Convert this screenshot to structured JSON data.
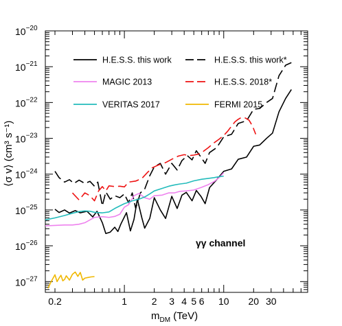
{
  "chart_data": {
    "type": "line",
    "xlabel_main": "m",
    "xlabel_sub": "DM",
    "xlabel_unit": " (TeV)",
    "ylabel": "⟨σ v⟩ (cm³ s⁻¹)",
    "x_scale": "log",
    "y_scale": "log",
    "xlim": [
      0.16,
      70
    ],
    "ylim": [
      5e-28,
      1e-20
    ],
    "x_tick_labels": [
      {
        "value": 0.2,
        "label": "0.2"
      },
      {
        "value": 1,
        "label": "1"
      },
      {
        "value": 2,
        "label": "2"
      },
      {
        "value": 3,
        "label": "3"
      },
      {
        "value": 4,
        "label": "4"
      },
      {
        "value": 5,
        "label": "5"
      },
      {
        "value": 6,
        "label": "6"
      },
      {
        "value": 10,
        "label": "10"
      },
      {
        "value": 20,
        "label": "20"
      },
      {
        "value": 30,
        "label": "30"
      }
    ],
    "y_tick_labels": [
      {
        "exp": -27,
        "base": "10",
        "sup": "−27"
      },
      {
        "exp": -26,
        "base": "10",
        "sup": "−26"
      },
      {
        "exp": -25,
        "base": "10",
        "sup": "−25"
      },
      {
        "exp": -24,
        "base": "10",
        "sup": "−24"
      },
      {
        "exp": -23,
        "base": "10",
        "sup": "−23"
      },
      {
        "exp": -22,
        "base": "10",
        "sup": "−22"
      },
      {
        "exp": -21,
        "base": "10",
        "sup": "−21"
      },
      {
        "exp": -20,
        "base": "10",
        "sup": "−20"
      }
    ],
    "annotation": "γγ channel",
    "legend_position": "top",
    "series": [
      {
        "name": "H.E.S.S. this work",
        "color": "#000000",
        "dash": "solid",
        "points": [
          [
            0.2,
            1.05e-25
          ],
          [
            0.22,
            8.5e-26
          ],
          [
            0.25,
            1e-25
          ],
          [
            0.28,
            8.2e-26
          ],
          [
            0.32,
            9.6e-26
          ],
          [
            0.36,
            8.3e-26
          ],
          [
            0.42,
            9.2e-26
          ],
          [
            0.48,
            6.4e-26
          ],
          [
            0.53,
            9.2e-26
          ],
          [
            0.6,
            4.4e-26
          ],
          [
            0.65,
            2.2e-26
          ],
          [
            0.72,
            2.4e-26
          ],
          [
            0.8,
            3.3e-26
          ],
          [
            0.86,
            2.5e-26
          ],
          [
            0.92,
            4e-26
          ],
          [
            1.05,
            8.4e-26
          ],
          [
            1.15,
            2.6e-26
          ],
          [
            1.25,
            5.5e-26
          ],
          [
            1.35,
            2e-25
          ],
          [
            1.5,
            6e-26
          ],
          [
            1.6,
            3.1e-26
          ],
          [
            1.8,
            5.8e-26
          ],
          [
            2.0,
            2.2e-25
          ],
          [
            2.3,
            1e-25
          ],
          [
            2.6,
            5.8e-26
          ],
          [
            3.0,
            2.4e-25
          ],
          [
            3.4,
            1.1e-25
          ],
          [
            3.8,
            2.6e-25
          ],
          [
            4.2,
            3.1e-25
          ],
          [
            4.8,
            1.8e-25
          ],
          [
            5.3,
            3.5e-25
          ],
          [
            5.9,
            2.4e-25
          ],
          [
            6.5,
            1.5e-25
          ],
          [
            7.2,
            4.2e-25
          ],
          [
            8.5,
            7e-25
          ],
          [
            10.0,
            1.2e-24
          ],
          [
            12.0,
            1.4e-24
          ],
          [
            14.0,
            2.6e-24
          ],
          [
            17.0,
            3e-24
          ],
          [
            20.0,
            6e-24
          ],
          [
            23.0,
            6.5e-24
          ],
          [
            27.0,
            1e-23
          ],
          [
            31.0,
            1.4e-23
          ],
          [
            36.0,
            5.5e-23
          ],
          [
            42.0,
            1.3e-22
          ],
          [
            48.0,
            2.3e-22
          ]
        ]
      },
      {
        "name": "H.E.S.S. this work*",
        "color": "#000000",
        "dash": "longdash",
        "points": [
          [
            0.2,
            1.2e-24
          ],
          [
            0.22,
            8e-25
          ],
          [
            0.25,
            6e-25
          ],
          [
            0.28,
            7e-25
          ],
          [
            0.31,
            5.5e-25
          ],
          [
            0.35,
            6.8e-25
          ],
          [
            0.4,
            5.5e-25
          ],
          [
            0.45,
            6.3e-25
          ],
          [
            0.5,
            4.6e-25
          ],
          [
            0.54,
            6e-25
          ],
          [
            0.6,
            1.3e-25
          ],
          [
            0.65,
            3.2e-25
          ],
          [
            0.72,
            2e-25
          ],
          [
            0.8,
            2.5e-25
          ],
          [
            0.9,
            2.2e-25
          ],
          [
            1.0,
            2.8e-25
          ],
          [
            1.1,
            1.6e-25
          ],
          [
            1.2,
            3e-25
          ],
          [
            1.3,
            1.1e-25
          ],
          [
            1.45,
            3e-25
          ],
          [
            1.6,
            3.8e-25
          ],
          [
            1.8,
            9e-25
          ],
          [
            2.0,
            1.6e-24
          ],
          [
            2.3,
            2e-24
          ],
          [
            2.6,
            1e-24
          ],
          [
            3.0,
            2e-24
          ],
          [
            3.4,
            1.3e-24
          ],
          [
            3.8,
            2.4e-24
          ],
          [
            4.3,
            3.3e-24
          ],
          [
            4.8,
            2.5e-24
          ],
          [
            5.3,
            4.5e-24
          ],
          [
            5.9,
            3e-24
          ],
          [
            6.5,
            2e-24
          ],
          [
            7.2,
            4e-24
          ],
          [
            8.5,
            5.5e-24
          ],
          [
            10.0,
            1.1e-23
          ],
          [
            12.0,
            1.3e-23
          ],
          [
            14.0,
            2.6e-23
          ],
          [
            17.0,
            3.1e-23
          ],
          [
            20.0,
            6.5e-23
          ],
          [
            23.0,
            6.8e-23
          ],
          [
            27.0,
            1e-22
          ],
          [
            31.0,
            1.3e-22
          ],
          [
            36.0,
            5.6e-22
          ],
          [
            42.0,
            1.1e-21
          ],
          [
            48.0,
            1.3e-21
          ]
        ]
      },
      {
        "name": "MAGIC 2013",
        "color": "#ee82ee",
        "dash": "solid",
        "points": [
          [
            0.16,
            3.6e-26
          ],
          [
            0.2,
            3.7e-26
          ],
          [
            0.25,
            3.8e-26
          ],
          [
            0.3,
            3.8e-26
          ],
          [
            0.35,
            4e-26
          ],
          [
            0.4,
            4.4e-26
          ],
          [
            0.5,
            6.2e-26
          ],
          [
            0.6,
            6.5e-26
          ],
          [
            0.7,
            6.2e-26
          ],
          [
            0.8,
            6.6e-26
          ],
          [
            0.9,
            7.6e-26
          ],
          [
            1.0,
            1.2e-25
          ],
          [
            1.1,
            1.4e-25
          ],
          [
            1.25,
            2.5e-25
          ],
          [
            1.4,
            2.9e-25
          ],
          [
            1.6,
            2.2e-25
          ],
          [
            1.8,
            2e-25
          ],
          [
            2.0,
            2.5e-25
          ],
          [
            2.4,
            2.6e-25
          ],
          [
            2.8,
            3e-25
          ],
          [
            3.2,
            3e-25
          ],
          [
            3.6,
            3.3e-25
          ],
          [
            4.2,
            3.4e-25
          ],
          [
            5.0,
            3.6e-25
          ],
          [
            6.0,
            4.3e-25
          ],
          [
            7.0,
            5.1e-25
          ],
          [
            8.0,
            6.2e-25
          ],
          [
            9.0,
            8e-25
          ],
          [
            10.0,
            1.1e-24
          ]
        ]
      },
      {
        "name": "H.E.S.S. 2018*",
        "color": "#ee1111",
        "dash": "longdash",
        "points": [
          [
            0.3,
            3e-25
          ],
          [
            0.35,
            1.9e-25
          ],
          [
            0.4,
            3e-25
          ],
          [
            0.45,
            2.5e-25
          ],
          [
            0.5,
            1.8e-25
          ],
          [
            0.55,
            3.4e-25
          ],
          [
            0.6,
            4.5e-25
          ],
          [
            0.65,
            3.4e-25
          ],
          [
            0.7,
            4.7e-25
          ],
          [
            0.8,
            4.5e-25
          ],
          [
            0.9,
            4.6e-25
          ],
          [
            1.0,
            4.4e-25
          ],
          [
            1.1,
            6e-25
          ],
          [
            1.3,
            6.4e-25
          ],
          [
            1.5,
            7.6e-25
          ],
          [
            1.7,
            1.1e-24
          ],
          [
            1.9,
            1.5e-24
          ],
          [
            2.2,
            1.8e-24
          ],
          [
            2.6,
            2.1e-24
          ],
          [
            3.0,
            2.6e-24
          ],
          [
            3.5,
            3.2e-24
          ],
          [
            4.0,
            3.5e-24
          ],
          [
            4.5,
            3.3e-24
          ],
          [
            5.0,
            3.4e-24
          ],
          [
            5.5,
            3.6e-24
          ],
          [
            6.0,
            4e-24
          ],
          [
            7.0,
            5.5e-24
          ],
          [
            8.0,
            7.5e-24
          ],
          [
            9.0,
            9.5e-24
          ],
          [
            10.0,
            1.2e-23
          ],
          [
            11.0,
            1.6e-23
          ],
          [
            12.0,
            2.2e-23
          ],
          [
            13.0,
            2.9e-23
          ],
          [
            14.0,
            3.4e-23
          ],
          [
            15.0,
            3.8e-23
          ],
          [
            16.5,
            3.7e-23
          ],
          [
            18.0,
            3.2e-23
          ],
          [
            19.5,
            2.2e-23
          ],
          [
            21.0,
            1.3e-23
          ]
        ]
      },
      {
        "name": "VERITAS 2017",
        "color": "#22bbbb",
        "dash": "solid",
        "points": [
          [
            0.16,
            5.3e-26
          ],
          [
            0.2,
            6e-26
          ],
          [
            0.25,
            7e-26
          ],
          [
            0.3,
            8.1e-26
          ],
          [
            0.35,
            9e-26
          ],
          [
            0.4,
            9.4e-26
          ],
          [
            0.45,
            9.2e-26
          ],
          [
            0.5,
            8.6e-26
          ],
          [
            0.6,
            8.3e-26
          ],
          [
            0.7,
            8.8e-26
          ],
          [
            0.8,
            1.1e-25
          ],
          [
            0.9,
            1.3e-25
          ],
          [
            1.0,
            1.5e-25
          ],
          [
            1.2,
            1.8e-25
          ],
          [
            1.4,
            2e-25
          ],
          [
            1.6,
            2.3e-25
          ],
          [
            1.8,
            2.8e-25
          ],
          [
            2.0,
            3.4e-25
          ],
          [
            2.4,
            4e-25
          ],
          [
            2.8,
            4.6e-25
          ],
          [
            3.2,
            5e-25
          ],
          [
            3.6,
            5.3e-25
          ],
          [
            4.2,
            5.6e-25
          ],
          [
            5.0,
            6.5e-25
          ],
          [
            6.0,
            7.2e-25
          ],
          [
            7.0,
            7.6e-25
          ],
          [
            8.0,
            8e-25
          ],
          [
            9.0,
            8.5e-25
          ],
          [
            10.0,
            8.8e-25
          ]
        ]
      },
      {
        "name": "FERMI 2015",
        "color": "#f0b800",
        "dash": "solid",
        "points": [
          [
            0.17,
            6.5e-28
          ],
          [
            0.18,
            9e-28
          ],
          [
            0.19,
            1.2e-27
          ],
          [
            0.2,
            1.55e-27
          ],
          [
            0.21,
            1e-27
          ],
          [
            0.22,
            1.25e-27
          ],
          [
            0.23,
            1.5e-27
          ],
          [
            0.24,
            1.05e-27
          ],
          [
            0.25,
            1.15e-27
          ],
          [
            0.26,
            1.45e-27
          ],
          [
            0.28,
            1.1e-27
          ],
          [
            0.3,
            1.6e-27
          ],
          [
            0.32,
            1.85e-27
          ],
          [
            0.34,
            1.4e-27
          ],
          [
            0.36,
            1.8e-27
          ],
          [
            0.38,
            1.1e-27
          ],
          [
            0.4,
            1.25e-27
          ],
          [
            0.43,
            1.3e-27
          ],
          [
            0.46,
            1.35e-27
          ],
          [
            0.5,
            1.38e-27
          ]
        ]
      }
    ]
  }
}
